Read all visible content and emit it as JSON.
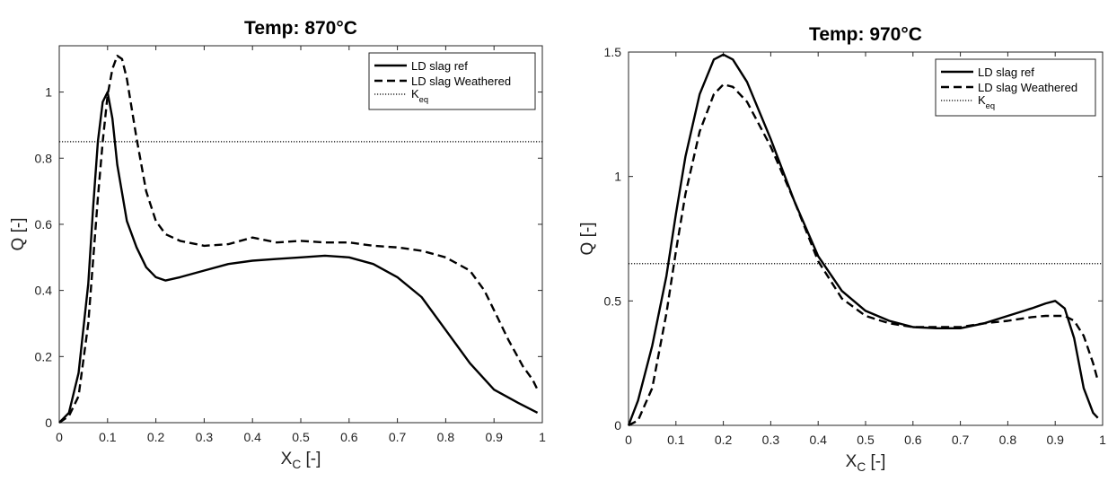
{
  "chart_data": [
    {
      "type": "line",
      "title": "Temp: 870°C",
      "xlabel": {
        "main": "X",
        "sub": "C",
        "suffix": " [-]"
      },
      "ylabel": "Q [-]",
      "xlim": [
        0,
        1
      ],
      "ylim": [
        0,
        1.14
      ],
      "xticks": [
        0,
        0.1,
        0.2,
        0.3,
        0.4,
        0.5,
        0.6,
        0.7,
        0.8,
        0.9,
        1
      ],
      "xtick_labels": [
        "0",
        "0.1",
        "0.2",
        "0.3",
        "0.4",
        "0.5",
        "0.6",
        "0.7",
        "0.8",
        "0.9",
        "1"
      ],
      "yticks": [
        0,
        0.2,
        0.4,
        0.6,
        0.8,
        1
      ],
      "ytick_labels": [
        "0",
        "0.2",
        "0.4",
        "0.6",
        "0.8",
        "1"
      ],
      "grid": false,
      "legend_position": "top-right",
      "keq_label": {
        "main": "K",
        "sub": "eq"
      },
      "keq": 0.85,
      "series": [
        {
          "name": "LD slag ref",
          "style": "solid",
          "x": [
            0.0,
            0.02,
            0.04,
            0.06,
            0.07,
            0.08,
            0.09,
            0.1,
            0.11,
            0.12,
            0.14,
            0.16,
            0.18,
            0.2,
            0.22,
            0.25,
            0.3,
            0.35,
            0.4,
            0.45,
            0.5,
            0.55,
            0.6,
            0.65,
            0.7,
            0.75,
            0.8,
            0.85,
            0.9,
            0.95,
            0.99
          ],
          "y": [
            0.0,
            0.03,
            0.15,
            0.42,
            0.65,
            0.85,
            0.97,
            1.0,
            0.92,
            0.78,
            0.61,
            0.53,
            0.47,
            0.44,
            0.43,
            0.44,
            0.46,
            0.48,
            0.49,
            0.495,
            0.5,
            0.505,
            0.5,
            0.48,
            0.44,
            0.38,
            0.28,
            0.18,
            0.1,
            0.06,
            0.03
          ]
        },
        {
          "name": "LD slag Weathered",
          "style": "dashed",
          "x": [
            0.0,
            0.02,
            0.04,
            0.06,
            0.08,
            0.09,
            0.1,
            0.11,
            0.12,
            0.13,
            0.14,
            0.16,
            0.18,
            0.2,
            0.22,
            0.25,
            0.3,
            0.35,
            0.4,
            0.45,
            0.5,
            0.55,
            0.6,
            0.65,
            0.7,
            0.75,
            0.8,
            0.85,
            0.88,
            0.9,
            0.93,
            0.96,
            0.98,
            0.99
          ],
          "y": [
            0.0,
            0.02,
            0.08,
            0.3,
            0.68,
            0.85,
            0.99,
            1.07,
            1.11,
            1.1,
            1.04,
            0.86,
            0.7,
            0.61,
            0.57,
            0.55,
            0.535,
            0.54,
            0.56,
            0.545,
            0.55,
            0.545,
            0.545,
            0.535,
            0.53,
            0.52,
            0.5,
            0.46,
            0.4,
            0.34,
            0.25,
            0.17,
            0.13,
            0.1
          ]
        }
      ]
    },
    {
      "type": "line",
      "title": "Temp: 970°C",
      "xlabel": {
        "main": "X",
        "sub": "C",
        "suffix": " [-]"
      },
      "ylabel": "Q [-]",
      "xlim": [
        0,
        1
      ],
      "ylim": [
        0,
        1.5
      ],
      "xticks": [
        0,
        0.1,
        0.2,
        0.3,
        0.4,
        0.5,
        0.6,
        0.7,
        0.8,
        0.9,
        1
      ],
      "xtick_labels": [
        "0",
        "0.1",
        "0.2",
        "0.3",
        "0.4",
        "0.5",
        "0.6",
        "0.7",
        "0.8",
        "0.9",
        "1"
      ],
      "yticks": [
        0,
        0.5,
        1,
        1.5
      ],
      "ytick_labels": [
        "0",
        "0.5",
        "1",
        "1.5"
      ],
      "grid": false,
      "legend_position": "top-right",
      "keq_label": {
        "main": "K",
        "sub": "eq"
      },
      "keq": 0.65,
      "series": [
        {
          "name": "LD slag ref",
          "style": "solid",
          "x": [
            0.0,
            0.02,
            0.05,
            0.08,
            0.1,
            0.12,
            0.15,
            0.18,
            0.2,
            0.22,
            0.25,
            0.3,
            0.35,
            0.4,
            0.45,
            0.5,
            0.55,
            0.6,
            0.65,
            0.7,
            0.75,
            0.8,
            0.85,
            0.88,
            0.9,
            0.92,
            0.94,
            0.96,
            0.98,
            0.99
          ],
          "y": [
            0.0,
            0.1,
            0.32,
            0.6,
            0.85,
            1.08,
            1.33,
            1.47,
            1.49,
            1.47,
            1.38,
            1.15,
            0.9,
            0.68,
            0.54,
            0.46,
            0.42,
            0.395,
            0.39,
            0.39,
            0.41,
            0.44,
            0.47,
            0.49,
            0.5,
            0.47,
            0.35,
            0.15,
            0.05,
            0.03
          ]
        },
        {
          "name": "LD slag Weathered",
          "style": "dashed",
          "x": [
            0.0,
            0.02,
            0.05,
            0.08,
            0.1,
            0.12,
            0.15,
            0.18,
            0.2,
            0.22,
            0.25,
            0.3,
            0.35,
            0.4,
            0.45,
            0.5,
            0.55,
            0.6,
            0.65,
            0.7,
            0.75,
            0.8,
            0.85,
            0.88,
            0.9,
            0.92,
            0.94,
            0.96,
            0.98,
            0.99
          ],
          "y": [
            0.0,
            0.02,
            0.15,
            0.45,
            0.7,
            0.93,
            1.18,
            1.33,
            1.37,
            1.36,
            1.3,
            1.12,
            0.9,
            0.66,
            0.51,
            0.44,
            0.41,
            0.395,
            0.395,
            0.395,
            0.41,
            0.42,
            0.435,
            0.44,
            0.44,
            0.44,
            0.42,
            0.36,
            0.25,
            0.18
          ]
        }
      ]
    }
  ]
}
